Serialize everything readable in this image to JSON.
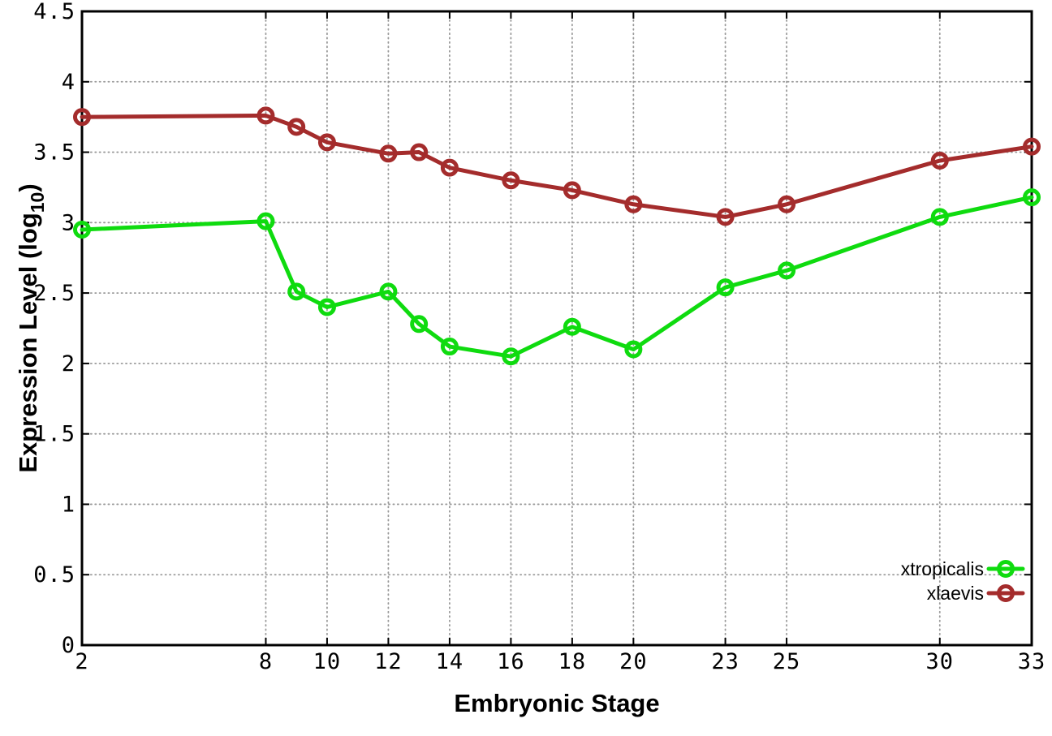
{
  "chart_data": {
    "type": "line",
    "title": "",
    "xlabel": "Embryonic Stage",
    "ylabel": "Expression Level (log10)",
    "ylabel_parts": {
      "prefix": "Expression Level (log",
      "subscript": "10",
      "suffix": ")"
    },
    "x": [
      2,
      8,
      9,
      10,
      12,
      13,
      14,
      16,
      18,
      20,
      23,
      25,
      30,
      33
    ],
    "series": [
      {
        "name": "xtropicalis",
        "color": "#0fdb0f",
        "marker": "open-circle",
        "values": [
          2.95,
          3.01,
          2.51,
          2.4,
          2.51,
          2.28,
          2.12,
          2.05,
          2.26,
          2.1,
          2.54,
          2.66,
          3.04,
          3.18
        ]
      },
      {
        "name": "xlaevis",
        "color": "#a42c2c",
        "marker": "open-circle",
        "values": [
          3.75,
          3.76,
          3.68,
          3.57,
          3.49,
          3.5,
          3.39,
          3.3,
          3.23,
          3.13,
          3.04,
          3.13,
          3.44,
          3.54
        ]
      }
    ],
    "xlim": [
      2,
      33
    ],
    "ylim": [
      0,
      4.5
    ],
    "xticks": [
      2,
      8,
      10,
      12,
      14,
      16,
      18,
      20,
      23,
      25,
      30,
      33
    ],
    "xtick_labels": [
      "2",
      "8",
      "10",
      "12",
      "14",
      "16",
      "18",
      "20",
      "23",
      "25",
      "30",
      "33"
    ],
    "yticks": [
      0,
      0.5,
      1,
      1.5,
      2,
      2.5,
      3,
      3.5,
      4,
      4.5
    ],
    "ytick_labels": [
      "0",
      "0.5",
      "1",
      "1.5",
      "2",
      "2.5",
      "3",
      "3.5",
      "4",
      "4.5"
    ],
    "grid": true,
    "grid_style": "dotted",
    "legend_position": "bottom-right",
    "legend_entries": [
      "xtropicalis",
      "xlaevis"
    ],
    "colors": {
      "background": "#ffffff",
      "axis": "#000000",
      "grid": "#999999",
      "xtropicalis": "#0fdb0f",
      "xlaevis": "#a42c2c"
    }
  }
}
